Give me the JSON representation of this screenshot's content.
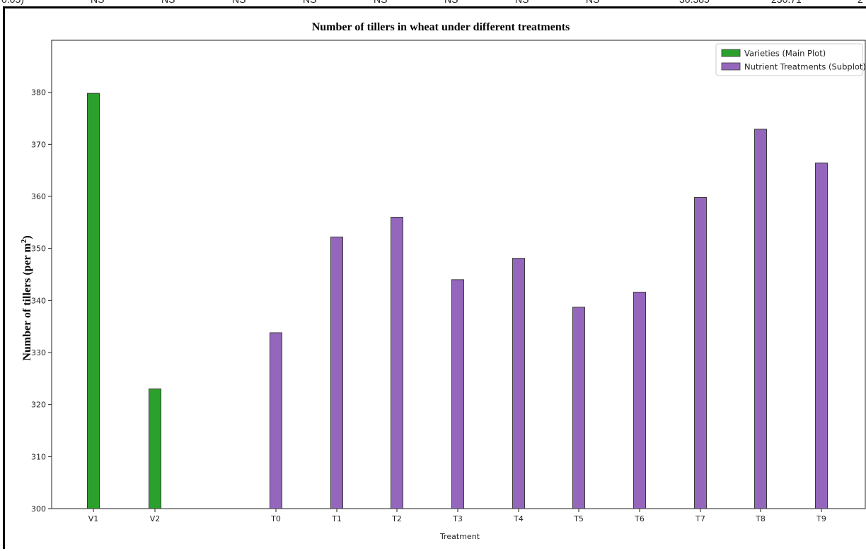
{
  "top_strip": [
    "0.05)",
    "NS",
    "NS",
    "NS",
    "NS",
    "NS",
    "NS",
    "NS",
    "NS",
    "30.385",
    "230.71",
    "2"
  ],
  "colors": {
    "varieties": "#2ca02c",
    "treatments": "#9467bd",
    "edge": "#3a3a3a"
  },
  "chart_data": {
    "type": "bar",
    "title": "Number of tillers in wheat under different treatments",
    "xlabel": "Treatment",
    "ylabel": "Number of tillers (per m",
    "ylabel_sup": "2",
    "ylabel_tail": ")",
    "ylim": [
      300,
      390
    ],
    "yticks": [
      300,
      310,
      320,
      330,
      340,
      350,
      360,
      370,
      380
    ],
    "grid": false,
    "legend_position": "top-right",
    "series": [
      {
        "name": "Varieties (Main Plot)",
        "color": "#2ca02c",
        "categories": [
          "V1",
          "V2"
        ],
        "values": [
          379.8,
          323.0
        ]
      },
      {
        "name": "Nutrient Treatments (Subplot)",
        "color": "#9467bd",
        "categories": [
          "T0",
          "T1",
          "T2",
          "T3",
          "T4",
          "T5",
          "T6",
          "T7",
          "T8",
          "T9"
        ],
        "values": [
          333.8,
          352.2,
          356.0,
          344.0,
          348.1,
          338.7,
          341.6,
          359.8,
          372.9,
          366.4
        ]
      }
    ]
  }
}
